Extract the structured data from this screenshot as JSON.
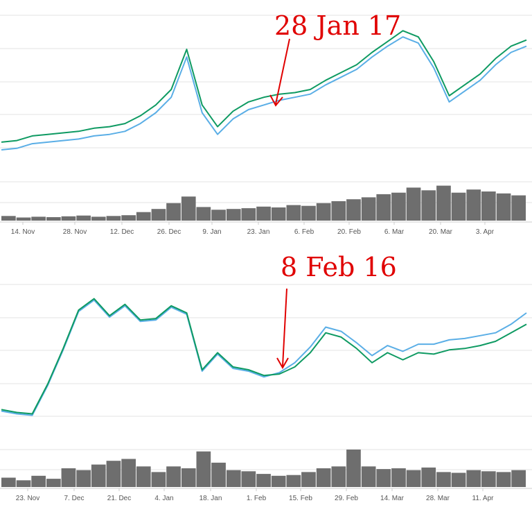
{
  "colors": {
    "series_main": "#0e9a62",
    "series_alt": "#5aaee6",
    "volume": "#6e6e6e",
    "gridline": "#e3e3e3",
    "axis_text": "#555555",
    "annotation": "#e00000"
  },
  "chart_data": [
    {
      "type": "line",
      "title": "",
      "x_tick_labels": [
        "14. Nov",
        "28. Nov",
        "12. Dec",
        "26. Dec",
        "9. Jan",
        "23. Jan",
        "6. Feb",
        "20. Feb",
        "6. Mar",
        "20. Mar",
        "3. Apr"
      ],
      "grid": true,
      "series": [
        {
          "role": "main",
          "color": "#0e9a62",
          "y": [
            0.18,
            0.19,
            0.22,
            0.23,
            0.24,
            0.25,
            0.27,
            0.28,
            0.3,
            0.35,
            0.42,
            0.52,
            0.78,
            0.42,
            0.28,
            0.38,
            0.44,
            0.47,
            0.49,
            0.5,
            0.52,
            0.58,
            0.63,
            0.68,
            0.76,
            0.83,
            0.9,
            0.86,
            0.7,
            0.48,
            0.55,
            0.62,
            0.72,
            0.8,
            0.84
          ]
        },
        {
          "role": "secondary",
          "color": "#5aaee6",
          "y": [
            0.13,
            0.14,
            0.17,
            0.18,
            0.19,
            0.2,
            0.22,
            0.23,
            0.25,
            0.3,
            0.37,
            0.47,
            0.73,
            0.37,
            0.23,
            0.33,
            0.39,
            0.42,
            0.45,
            0.47,
            0.49,
            0.55,
            0.6,
            0.65,
            0.73,
            0.8,
            0.86,
            0.82,
            0.66,
            0.44,
            0.51,
            0.58,
            0.68,
            0.76,
            0.8
          ]
        }
      ],
      "volume": [
        0.12,
        0.08,
        0.1,
        0.09,
        0.11,
        0.13,
        0.1,
        0.12,
        0.14,
        0.22,
        0.3,
        0.45,
        0.62,
        0.35,
        0.28,
        0.3,
        0.32,
        0.36,
        0.34,
        0.4,
        0.38,
        0.45,
        0.5,
        0.55,
        0.6,
        0.68,
        0.72,
        0.85,
        0.78,
        0.9,
        0.72,
        0.8,
        0.75,
        0.7,
        0.65
      ],
      "annotation": {
        "text": "28 Jan 17"
      }
    },
    {
      "type": "line",
      "title": "",
      "x_tick_labels": [
        "23. Nov",
        "7. Dec",
        "21. Dec",
        "4. Jan",
        "18. Jan",
        "1. Feb",
        "15. Feb",
        "29. Feb",
        "14. Mar",
        "28. Mar",
        "11. Apr"
      ],
      "grid": true,
      "series": [
        {
          "role": "main",
          "color": "#0e9a62",
          "y": [
            0.12,
            0.1,
            0.09,
            0.3,
            0.55,
            0.82,
            0.9,
            0.78,
            0.86,
            0.75,
            0.76,
            0.85,
            0.8,
            0.4,
            0.52,
            0.42,
            0.4,
            0.36,
            0.37,
            0.42,
            0.52,
            0.66,
            0.63,
            0.55,
            0.45,
            0.52,
            0.47,
            0.52,
            0.51,
            0.54,
            0.55,
            0.57,
            0.6,
            0.66,
            0.72
          ]
        },
        {
          "role": "secondary",
          "color": "#5aaee6",
          "y": [
            0.11,
            0.09,
            0.08,
            0.29,
            0.54,
            0.81,
            0.89,
            0.77,
            0.85,
            0.74,
            0.75,
            0.84,
            0.79,
            0.39,
            0.51,
            0.41,
            0.39,
            0.35,
            0.38,
            0.45,
            0.56,
            0.7,
            0.67,
            0.59,
            0.5,
            0.57,
            0.53,
            0.58,
            0.58,
            0.61,
            0.62,
            0.64,
            0.66,
            0.72,
            0.8
          ]
        }
      ],
      "volume": [
        0.25,
        0.18,
        0.3,
        0.22,
        0.5,
        0.45,
        0.6,
        0.7,
        0.75,
        0.55,
        0.4,
        0.55,
        0.5,
        0.95,
        0.65,
        0.45,
        0.42,
        0.35,
        0.3,
        0.32,
        0.4,
        0.5,
        0.55,
        1.0,
        0.55,
        0.48,
        0.5,
        0.45,
        0.52,
        0.4,
        0.38,
        0.45,
        0.42,
        0.4,
        0.45
      ],
      "annotation": {
        "text": "8 Feb 16"
      }
    }
  ]
}
